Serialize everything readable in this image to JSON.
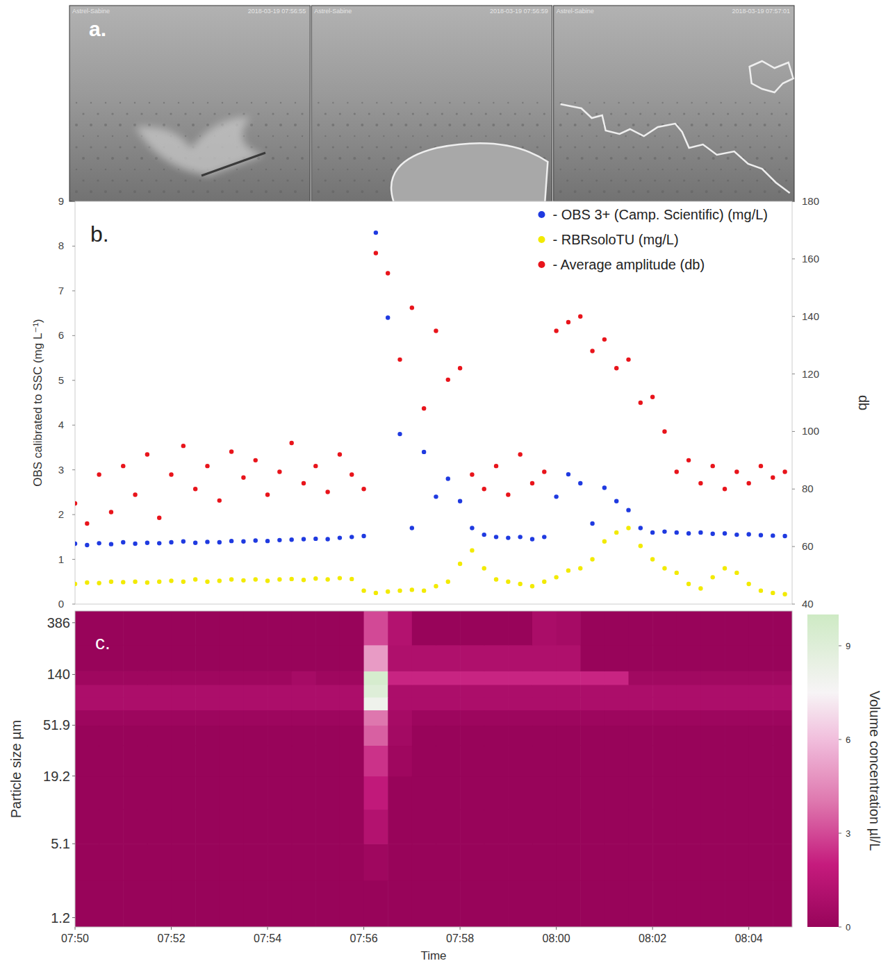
{
  "images": {
    "label": "a.",
    "frames": [
      {
        "caption": "Astrel-Sabine",
        "timestamp": "2018-03-19 07:56:55"
      },
      {
        "caption": "Astrel-Sabine",
        "timestamp": "2018-03-19 07:56:59"
      },
      {
        "caption": "Astrel-Sabine",
        "timestamp": "2018-03-19 07:57:01"
      }
    ]
  },
  "chart_data": [
    {
      "type": "scatter",
      "label": "b.",
      "x": [
        470,
        470.25,
        470.5,
        470.75,
        471,
        471.25,
        471.5,
        471.75,
        472,
        472.25,
        472.5,
        472.75,
        473,
        473.25,
        473.5,
        473.75,
        474,
        474.25,
        474.5,
        474.75,
        475,
        475.25,
        475.5,
        475.75,
        476,
        476.25,
        476.5,
        476.75,
        477,
        477.25,
        477.5,
        477.75,
        478,
        478.25,
        478.5,
        478.75,
        479,
        479.25,
        479.5,
        479.75,
        480,
        480.25,
        480.5,
        480.75,
        481,
        481.25,
        481.5,
        481.75,
        482,
        482.25,
        482.5,
        482.75,
        483,
        483.25,
        483.5,
        483.75,
        484,
        484.25,
        484.5,
        484.75
      ],
      "xlim": [
        470,
        484.9
      ],
      "tick_labels": "y",
      "ylabel": "OBS calibrated to SSC  (mg L⁻¹)",
      "ylim": [
        0,
        9
      ],
      "yticks": [
        0,
        1,
        2,
        3,
        4,
        5,
        6,
        7,
        8,
        9
      ],
      "y2label": "db",
      "y2lim": [
        40,
        180
      ],
      "y2ticks": [
        40,
        60,
        80,
        100,
        120,
        140,
        160,
        180
      ],
      "legend": "top-right",
      "marker": "circle",
      "series": [
        {
          "name": "- OBS 3+ (Camp. Scientific) (mg/L)",
          "color": "#1f3ae0",
          "values": [
            1.35,
            1.32,
            1.36,
            1.34,
            1.38,
            1.35,
            1.37,
            1.36,
            1.38,
            1.4,
            1.37,
            1.39,
            1.38,
            1.41,
            1.4,
            1.42,
            1.41,
            1.43,
            1.44,
            1.45,
            1.46,
            1.45,
            1.48,
            1.5,
            1.52,
            8.3,
            6.4,
            3.8,
            1.7,
            3.4,
            2.4,
            2.8,
            2.3,
            1.7,
            1.55,
            1.5,
            1.48,
            1.5,
            1.45,
            1.5,
            2.4,
            2.9,
            2.7,
            1.8,
            2.6,
            2.3,
            2.1,
            1.7,
            1.6,
            1.62,
            1.6,
            1.58,
            1.6,
            1.57,
            1.58,
            1.55,
            1.56,
            1.54,
            1.53,
            1.52
          ]
        },
        {
          "name": "- RBRsoloTU (mg/L)",
          "color": "#f2ea00",
          "values": [
            0.45,
            0.48,
            0.47,
            0.5,
            0.49,
            0.5,
            0.48,
            0.5,
            0.52,
            0.5,
            0.55,
            0.5,
            0.52,
            0.55,
            0.53,
            0.55,
            0.52,
            0.55,
            0.56,
            0.54,
            0.57,
            0.55,
            0.58,
            0.56,
            0.3,
            0.25,
            0.28,
            0.3,
            0.32,
            0.3,
            0.4,
            0.5,
            0.9,
            1.2,
            0.8,
            0.55,
            0.5,
            0.45,
            0.4,
            0.5,
            0.6,
            0.75,
            0.8,
            1.0,
            1.4,
            1.6,
            1.7,
            1.3,
            1.0,
            0.8,
            0.7,
            0.45,
            0.35,
            0.6,
            0.8,
            0.7,
            0.45,
            0.3,
            0.25,
            0.22
          ]
        },
        {
          "name": "- Average amplitude (db)",
          "color": "#e8141b",
          "axis": "y2",
          "values": [
            75,
            68,
            85,
            72,
            88,
            78,
            92,
            70,
            85,
            95,
            80,
            88,
            76,
            93,
            84,
            90,
            78,
            86,
            96,
            82,
            88,
            79,
            92,
            85,
            80,
            162,
            155,
            125,
            143,
            108,
            135,
            118,
            122,
            85,
            80,
            88,
            78,
            92,
            82,
            86,
            135,
            138,
            140,
            128,
            132,
            122,
            125,
            110,
            112,
            100,
            86,
            90,
            82,
            88,
            80,
            86,
            82,
            88,
            84,
            86
          ]
        }
      ]
    },
    {
      "type": "heatmap",
      "label": "c.",
      "x_bins": [
        470,
        470.5,
        471,
        471.5,
        472,
        472.5,
        473,
        473.5,
        474,
        474.5,
        475,
        475.5,
        476,
        476.5,
        477,
        477.5,
        478,
        478.5,
        479,
        479.5,
        480,
        480.5,
        481,
        481.5,
        482,
        482.5,
        483,
        483.5,
        484,
        484.5,
        485
      ],
      "y_bins": [
        1.0,
        2.5,
        5.1,
        10,
        19.2,
        35,
        51.9,
        70,
        90,
        115,
        150,
        250,
        485
      ],
      "cells": [
        [
          0,
          0,
          0,
          0,
          0,
          0,
          0,
          0,
          0,
          0,
          0,
          0,
          0,
          0,
          0,
          0,
          0,
          0,
          0,
          0,
          0,
          0,
          0,
          0,
          0,
          0,
          0,
          0,
          0,
          0
        ],
        [
          0,
          0,
          0,
          0,
          0,
          0,
          0,
          0,
          0,
          0,
          0,
          0,
          0.3,
          0,
          0,
          0,
          0,
          0,
          0,
          0,
          0,
          0,
          0,
          0,
          0,
          0,
          0,
          0,
          0,
          0
        ],
        [
          0,
          0,
          0,
          0,
          0,
          0,
          0,
          0,
          0,
          0,
          0,
          0,
          1.2,
          0,
          0,
          0,
          0,
          0,
          0,
          0,
          0,
          0,
          0,
          0,
          0,
          0,
          0,
          0,
          0,
          0
        ],
        [
          0,
          0,
          0,
          0,
          0,
          0,
          0,
          0,
          0,
          0,
          0,
          0,
          1.8,
          0,
          0,
          0,
          0,
          0,
          0,
          0,
          0,
          0,
          0,
          0,
          0,
          0,
          0,
          0,
          0,
          0
        ],
        [
          0,
          0,
          0,
          0,
          0,
          0,
          0,
          0,
          0,
          0,
          0,
          0,
          2.5,
          0.3,
          0,
          0,
          0,
          0,
          0,
          0,
          0,
          0,
          0,
          0,
          0,
          0,
          0,
          0,
          0,
          0
        ],
        [
          0,
          0,
          0,
          0,
          0,
          0,
          0,
          0,
          0,
          0,
          0,
          0,
          3.5,
          0.5,
          0,
          0,
          0,
          0,
          0,
          0,
          0,
          0,
          0,
          0,
          0,
          0,
          0,
          0,
          0,
          0
        ],
        [
          0.2,
          0.2,
          0.2,
          0.2,
          0.2,
          0.2,
          0.2,
          0.2,
          0.2,
          0.2,
          0.2,
          0.2,
          4,
          0.6,
          0.2,
          0.2,
          0.2,
          0.2,
          0.2,
          0.2,
          0.2,
          0.2,
          0.2,
          0.2,
          0.2,
          0.2,
          0.2,
          0.2,
          0.2,
          0.2
        ],
        [
          0.9,
          0.9,
          0.9,
          0.9,
          0.9,
          0.9,
          0.9,
          0.9,
          0.9,
          0.9,
          0.9,
          0.9,
          8,
          0.9,
          0.9,
          0.9,
          0.9,
          0.9,
          0.9,
          0.9,
          0.9,
          0.9,
          0.9,
          0.9,
          0.9,
          0.9,
          0.9,
          0.9,
          0.9,
          0.9
        ],
        [
          0.9,
          0.9,
          0.9,
          0.9,
          0.9,
          0.9,
          0.9,
          0.9,
          0.9,
          0.9,
          0.9,
          0.9,
          9,
          0.9,
          0.9,
          0.9,
          0.9,
          0.9,
          0.9,
          0.9,
          0.9,
          0.9,
          0.9,
          0.9,
          0.9,
          0.9,
          0.9,
          0.9,
          0.9,
          0.9
        ],
        [
          0.3,
          0.3,
          0.3,
          0.3,
          0.3,
          0.3,
          0.3,
          0.3,
          0.3,
          0.6,
          0.3,
          0.3,
          9.5,
          2.2,
          2.2,
          2.2,
          2.2,
          2.2,
          2.2,
          2.2,
          2.2,
          2.2,
          2.2,
          0.4,
          0.4,
          0.4,
          0.4,
          0.4,
          0.4,
          0.4
        ],
        [
          0,
          0,
          0,
          0,
          0,
          0,
          0,
          0,
          0,
          0,
          0,
          0,
          5,
          1.0,
          1.0,
          1.0,
          1.0,
          1.0,
          1.0,
          1.0,
          1.0,
          0,
          0,
          0,
          0,
          0,
          0,
          0,
          0,
          0
        ],
        [
          0,
          0,
          0,
          0,
          0,
          0,
          0,
          0,
          0,
          0,
          0,
          0,
          3,
          1.2,
          0,
          0,
          0,
          0,
          0,
          0.8,
          0.6,
          0,
          0,
          0,
          0,
          0,
          0,
          0,
          0,
          0
        ]
      ],
      "xlim": [
        470,
        484.9
      ],
      "xticks": [
        {
          "value": 470,
          "label": "07:50"
        },
        {
          "value": 472,
          "label": "07:52"
        },
        {
          "value": 474,
          "label": "07:54"
        },
        {
          "value": 476,
          "label": "07:56"
        },
        {
          "value": 478,
          "label": "07:58"
        },
        {
          "value": 480,
          "label": "08:00"
        },
        {
          "value": 482,
          "label": "08:02"
        },
        {
          "value": 484,
          "label": "08:04"
        }
      ],
      "xlabel": "Time",
      "ylabel": "Particle size µm",
      "log": "y",
      "ylim": [
        1.0,
        485
      ],
      "yticks": [
        1.2,
        5.1,
        19.2,
        51.9,
        140,
        386
      ],
      "colorbar": {
        "range": [
          0,
          10
        ],
        "ticks": [
          0,
          3,
          6,
          9
        ],
        "label": "Volume concentration µl/L"
      }
    }
  ]
}
